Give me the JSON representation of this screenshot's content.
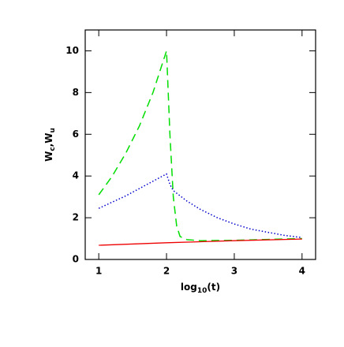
{
  "chart_data": {
    "type": "line",
    "xlabel": [
      {
        "text": "log"
      },
      {
        "text": "10",
        "sub": true
      },
      {
        "text": "(t)"
      }
    ],
    "ylabel": [
      {
        "text": "W"
      },
      {
        "text": "c",
        "sub": true
      },
      {
        "text": ",W"
      },
      {
        "text": "u",
        "sub": true
      }
    ],
    "xlim": [
      0.8,
      4.2
    ],
    "ylim": [
      0,
      11
    ],
    "xticks": [
      1,
      2,
      3,
      4
    ],
    "yticks": [
      0,
      2,
      4,
      6,
      8,
      10
    ],
    "series": [
      {
        "color": "#00dd00",
        "dash": "10,6",
        "x": [
          1,
          1.2,
          1.4,
          1.6,
          1.8,
          2.0,
          2.05,
          2.1,
          2.15,
          2.2,
          2.3,
          2.5,
          3.0,
          3.5,
          4.0
        ],
        "values": [
          3.1,
          4.0,
          5.1,
          6.4,
          8.0,
          10.0,
          6.0,
          3.0,
          1.6,
          1.1,
          0.95,
          0.9,
          0.92,
          0.96,
          1.0
        ]
      },
      {
        "color": "#0000cc",
        "dash": "1.5,2.5",
        "x": [
          1,
          1.2,
          1.4,
          1.6,
          1.8,
          2.0,
          2.05,
          2.1,
          2.3,
          2.5,
          2.75,
          3.0,
          3.25,
          3.5,
          3.75,
          4.0
        ],
        "values": [
          2.45,
          2.75,
          3.05,
          3.4,
          3.75,
          4.1,
          3.6,
          3.3,
          2.8,
          2.4,
          2.0,
          1.7,
          1.45,
          1.3,
          1.15,
          1.05
        ]
      },
      {
        "color": "#ee0000",
        "dash": "none",
        "x": [
          1,
          2,
          3,
          4
        ],
        "values": [
          0.68,
          0.8,
          0.9,
          0.98
        ]
      }
    ]
  }
}
